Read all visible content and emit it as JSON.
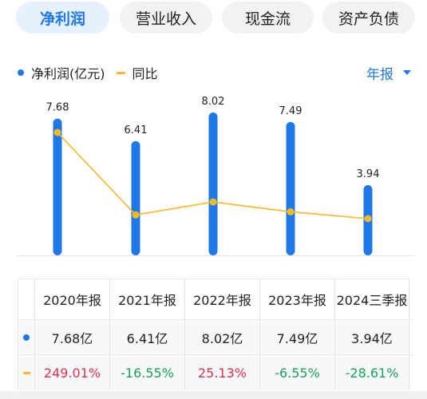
{
  "tabs": [
    {
      "label": "净利润",
      "active": true
    },
    {
      "label": "营业收入",
      "active": false
    },
    {
      "label": "现金流",
      "active": false
    },
    {
      "label": "资产负债",
      "active": false
    }
  ],
  "legend": {
    "bar_label": "净利润(亿元)",
    "line_label": "同比"
  },
  "period_selector": "年报",
  "colors": {
    "accent": "#1e78e8",
    "line": "#f5b924",
    "positive": "#e2304a",
    "negative": "#1aa35a"
  },
  "chart_data": {
    "type": "bar",
    "categories": [
      "2020年报",
      "2021年报",
      "2022年报",
      "2023年报",
      "2024三季报"
    ],
    "series": [
      {
        "name": "净利润(亿元)",
        "type": "bar",
        "values": [
          7.68,
          6.41,
          8.02,
          7.49,
          3.94
        ],
        "labels": [
          "7.68",
          "6.41",
          "8.02",
          "7.49",
          "3.94"
        ]
      },
      {
        "name": "同比",
        "type": "line",
        "values": [
          249.01,
          -16.55,
          25.13,
          -6.55,
          -28.61
        ]
      }
    ],
    "grid": false,
    "legend_position": "top-left"
  },
  "table": {
    "headers": [
      "2020年报",
      "2021年报",
      "2022年报",
      "2023年报",
      "2024三季报"
    ],
    "rows": [
      {
        "marker": "bar",
        "values": [
          "7.68亿",
          "6.41亿",
          "8.02亿",
          "7.49亿",
          "3.94亿"
        ]
      },
      {
        "marker": "line",
        "values": [
          "249.01%",
          "-16.55%",
          "25.13%",
          "-6.55%",
          "-28.61%"
        ]
      }
    ]
  }
}
